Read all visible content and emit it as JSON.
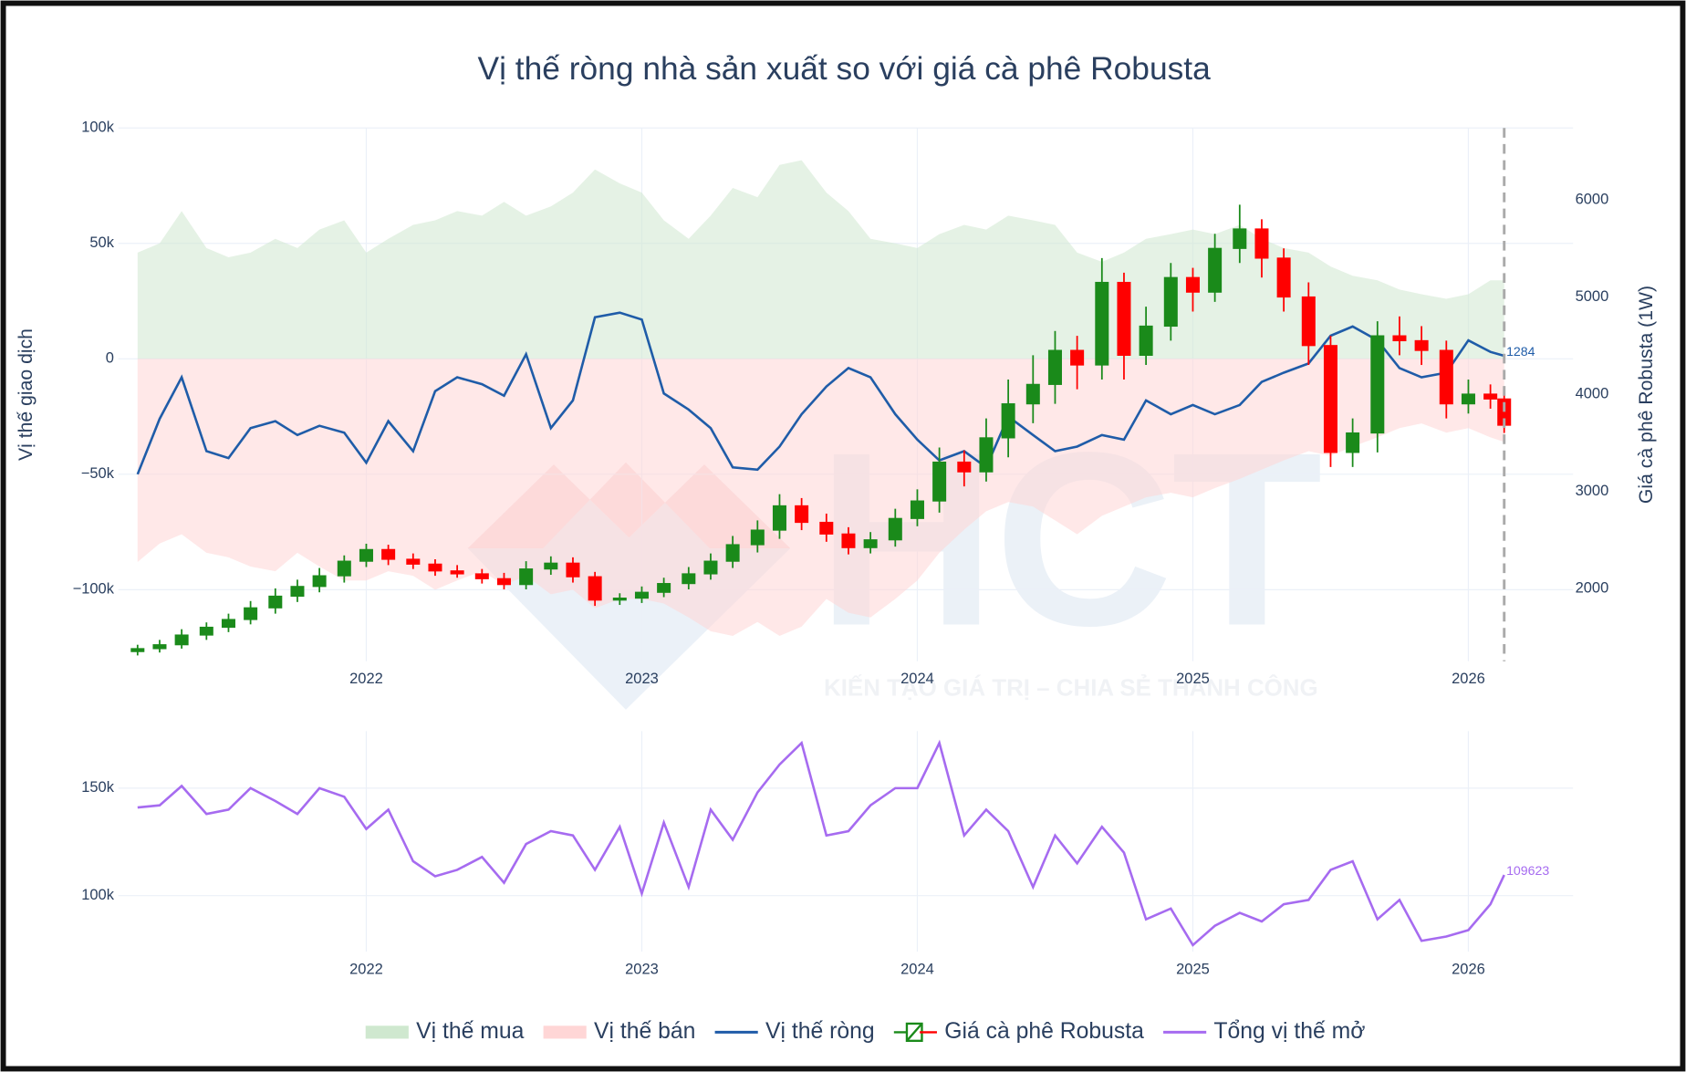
{
  "chart_data": [
    {
      "type": "combo",
      "title": "Vị thế ròng nhà sản xuất so với giá cà phê Robusta",
      "y_label": "Vị thế giao dịch",
      "y2_label": "Giá cà phê Robusta (1W)",
      "x": [
        2021.17,
        2021.25,
        2021.33,
        2021.42,
        2021.5,
        2021.58,
        2021.67,
        2021.75,
        2021.83,
        2021.92,
        2022.0,
        2022.08,
        2022.17,
        2022.25,
        2022.33,
        2022.42,
        2022.5,
        2022.58,
        2022.67,
        2022.75,
        2022.83,
        2022.92,
        2023.0,
        2023.08,
        2023.17,
        2023.25,
        2023.33,
        2023.42,
        2023.5,
        2023.58,
        2023.67,
        2023.75,
        2023.83,
        2023.92,
        2024.0,
        2024.08,
        2024.17,
        2024.25,
        2024.33,
        2024.42,
        2024.5,
        2024.58,
        2024.67,
        2024.75,
        2024.83,
        2024.92,
        2025.0,
        2025.08,
        2025.17,
        2025.25,
        2025.33,
        2025.42,
        2025.5,
        2025.58,
        2025.67,
        2025.75,
        2025.83,
        2025.92,
        2026.0,
        2026.08,
        2026.13
      ],
      "xlim": [
        2021.1,
        2026.38
      ],
      "xticks": [
        2022,
        2023,
        2024,
        2025,
        2026
      ],
      "ylim": [
        -131000,
        100000
      ],
      "yticks": [
        {
          "value": 100000,
          "label": "100k"
        },
        {
          "value": 50000,
          "label": "50k"
        },
        0,
        {
          "value": -50000,
          "label": "−50k"
        },
        {
          "value": -100000,
          "label": "−100k"
        }
      ],
      "y2lim": [
        1250,
        6740
      ],
      "y2ticks": [
        2000,
        3000,
        4000,
        5000,
        6000
      ],
      "grid": true,
      "series": [
        {
          "name": "Vị thế mua",
          "type": "area",
          "color": "#cfe8cf",
          "values": [
            46000,
            50000,
            64000,
            48000,
            44000,
            46000,
            52000,
            48000,
            56000,
            60000,
            46000,
            52000,
            58000,
            60000,
            64000,
            62000,
            68000,
            62000,
            66000,
            72000,
            82000,
            76000,
            72000,
            60000,
            52000,
            62000,
            74000,
            70000,
            84000,
            86000,
            72000,
            64000,
            52000,
            50000,
            48000,
            54000,
            58000,
            56000,
            62000,
            60000,
            58000,
            46000,
            42000,
            46000,
            52000,
            54000,
            56000,
            54000,
            58000,
            52000,
            48000,
            46000,
            40000,
            36000,
            34000,
            30000,
            28000,
            26000,
            28000,
            34000,
            34000
          ]
        },
        {
          "name": "Vị thế bán",
          "type": "area",
          "color": "#ffd6d6",
          "values": [
            -88000,
            -80000,
            -76000,
            -84000,
            -86000,
            -90000,
            -92000,
            -84000,
            -90000,
            -96000,
            -96000,
            -92000,
            -94000,
            -100000,
            -96000,
            -92000,
            -98000,
            -94000,
            -102000,
            -100000,
            -108000,
            -104000,
            -104000,
            -106000,
            -112000,
            -118000,
            -120000,
            -114000,
            -120000,
            -116000,
            -104000,
            -110000,
            -112000,
            -104000,
            -96000,
            -84000,
            -74000,
            -66000,
            -62000,
            -64000,
            -70000,
            -76000,
            -68000,
            -64000,
            -60000,
            -58000,
            -60000,
            -56000,
            -52000,
            -48000,
            -44000,
            -40000,
            -42000,
            -38000,
            -34000,
            -30000,
            -28000,
            -32000,
            -30000,
            -34000,
            -36000
          ]
        },
        {
          "name": "Vị thế ròng",
          "type": "line",
          "color": "#1f5ca8",
          "values": [
            -50000,
            -26000,
            -8000,
            -40000,
            -43000,
            -30000,
            -27000,
            -33000,
            -29000,
            -32000,
            -45000,
            -27000,
            -40000,
            -14000,
            -8000,
            -11000,
            -16000,
            2000,
            -30000,
            -18000,
            18000,
            20000,
            17000,
            -15000,
            -22000,
            -30000,
            -47000,
            -48000,
            -38000,
            -24000,
            -12000,
            -4000,
            -8000,
            -24000,
            -35000,
            -44000,
            -40000,
            -47000,
            -25000,
            -33000,
            -40000,
            -38000,
            -33000,
            -35000,
            -18000,
            -24000,
            -20000,
            -24000,
            -20000,
            -10000,
            -6000,
            -2000,
            10000,
            14000,
            8000,
            -4000,
            -8000,
            -6000,
            8000,
            3000,
            1284
          ]
        },
        {
          "name": "Giá cà phê Robusta",
          "type": "candlestick",
          "axis": "y2",
          "increasing_color": "#1a8a1a",
          "decreasing_color": "#ff0000",
          "open": [
            1350,
            1380,
            1420,
            1520,
            1600,
            1680,
            1800,
            1920,
            2020,
            2130,
            2280,
            2400,
            2300,
            2250,
            2180,
            2150,
            2100,
            2040,
            2200,
            2260,
            2120,
            1880,
            1900,
            1960,
            2050,
            2150,
            2280,
            2450,
            2600,
            2850,
            2680,
            2560,
            2420,
            2500,
            2720,
            2900,
            3300,
            3200,
            3550,
            3900,
            4100,
            4450,
            4300,
            5150,
            4400,
            4700,
            5200,
            5050,
            5500,
            5700,
            5400,
            5000,
            4500,
            3400,
            3600,
            4600,
            4550,
            4450,
            3900,
            4000,
            3950
          ],
          "high": [
            1420,
            1470,
            1580,
            1650,
            1740,
            1870,
            2000,
            2090,
            2210,
            2340,
            2460,
            2450,
            2360,
            2300,
            2240,
            2200,
            2160,
            2280,
            2330,
            2320,
            2170,
            1950,
            2020,
            2110,
            2220,
            2360,
            2540,
            2700,
            2970,
            2930,
            2770,
            2630,
            2580,
            2820,
            3020,
            3450,
            3420,
            3750,
            4150,
            4400,
            4650,
            4600,
            5400,
            5250,
            4900,
            5350,
            5300,
            5650,
            5950,
            5800,
            5500,
            5150,
            4600,
            3750,
            4750,
            4800,
            4700,
            4550,
            4150,
            4100,
            4010
          ],
          "low": [
            1310,
            1340,
            1380,
            1470,
            1550,
            1630,
            1740,
            1860,
            1960,
            2060,
            2220,
            2240,
            2200,
            2130,
            2110,
            2050,
            1990,
            1990,
            2140,
            2060,
            1820,
            1830,
            1850,
            1910,
            1990,
            2090,
            2210,
            2370,
            2510,
            2600,
            2480,
            2350,
            2360,
            2430,
            2640,
            2780,
            3050,
            3100,
            3350,
            3700,
            3900,
            4050,
            4150,
            4150,
            4300,
            4550,
            4850,
            4950,
            5350,
            5200,
            4850,
            4300,
            3250,
            3250,
            3400,
            4400,
            4300,
            3750,
            3800,
            3850,
            3600
          ],
          "close": [
            1380,
            1420,
            1520,
            1600,
            1680,
            1800,
            1920,
            2020,
            2130,
            2280,
            2400,
            2300,
            2250,
            2180,
            2150,
            2100,
            2040,
            2200,
            2260,
            2120,
            1880,
            1900,
            1960,
            2050,
            2150,
            2280,
            2450,
            2600,
            2850,
            2680,
            2560,
            2420,
            2500,
            2720,
            2900,
            3300,
            3200,
            3550,
            3900,
            4100,
            4450,
            4300,
            5150,
            4400,
            4700,
            5200,
            5050,
            5500,
            5700,
            5400,
            5000,
            4500,
            3400,
            3600,
            4600,
            4550,
            4450,
            3900,
            4000,
            3950,
            3680
          ]
        }
      ],
      "shapes": [
        {
          "type": "vline",
          "x": 2026.13
        }
      ],
      "watermark": {
        "logo": "HCT",
        "slogan": "KIẾN TẠO GIÁ TRỊ – CHIA SẺ THÀNH CÔNG"
      }
    },
    {
      "type": "line",
      "x": [
        2021.17,
        2021.25,
        2021.33,
        2021.42,
        2021.5,
        2021.58,
        2021.67,
        2021.75,
        2021.83,
        2021.92,
        2022.0,
        2022.08,
        2022.17,
        2022.25,
        2022.33,
        2022.42,
        2022.5,
        2022.58,
        2022.67,
        2022.75,
        2022.83,
        2022.92,
        2023.0,
        2023.08,
        2023.17,
        2023.25,
        2023.33,
        2023.42,
        2023.5,
        2023.58,
        2023.67,
        2023.75,
        2023.83,
        2023.92,
        2024.0,
        2024.08,
        2024.17,
        2024.25,
        2024.33,
        2024.42,
        2024.5,
        2024.58,
        2024.67,
        2024.75,
        2024.83,
        2024.92,
        2025.0,
        2025.08,
        2025.17,
        2025.25,
        2025.33,
        2025.42,
        2025.5,
        2025.58,
        2025.67,
        2025.75,
        2025.83,
        2025.92,
        2026.0,
        2026.08,
        2026.13
      ],
      "xlim": [
        2021.1,
        2026.38
      ],
      "xticks": [
        2022,
        2023,
        2024,
        2025,
        2026
      ],
      "ylim": [
        74000,
        176500
      ],
      "yticks": [
        {
          "value": 100000,
          "label": "100k"
        },
        {
          "value": 150000,
          "label": "150k"
        }
      ],
      "grid": true,
      "series": [
        {
          "name": "Tổng vị thế mở",
          "color": "#a66bf0",
          "values": [
            141000,
            142000,
            151000,
            138000,
            140000,
            150000,
            144000,
            138000,
            150000,
            146000,
            131000,
            140000,
            116000,
            109000,
            112000,
            118000,
            106000,
            124000,
            130000,
            128000,
            112000,
            132000,
            101000,
            134000,
            104000,
            140000,
            126000,
            148000,
            161000,
            171000,
            128000,
            130000,
            142000,
            150000,
            150000,
            171000,
            128000,
            140000,
            130000,
            104000,
            128000,
            115000,
            132000,
            120000,
            89000,
            94000,
            77000,
            86000,
            92000,
            88000,
            96000,
            98000,
            112000,
            116000,
            89000,
            98000,
            79000,
            81000,
            84000,
            96000,
            109623
          ]
        }
      ]
    }
  ],
  "legend": "bottom"
}
